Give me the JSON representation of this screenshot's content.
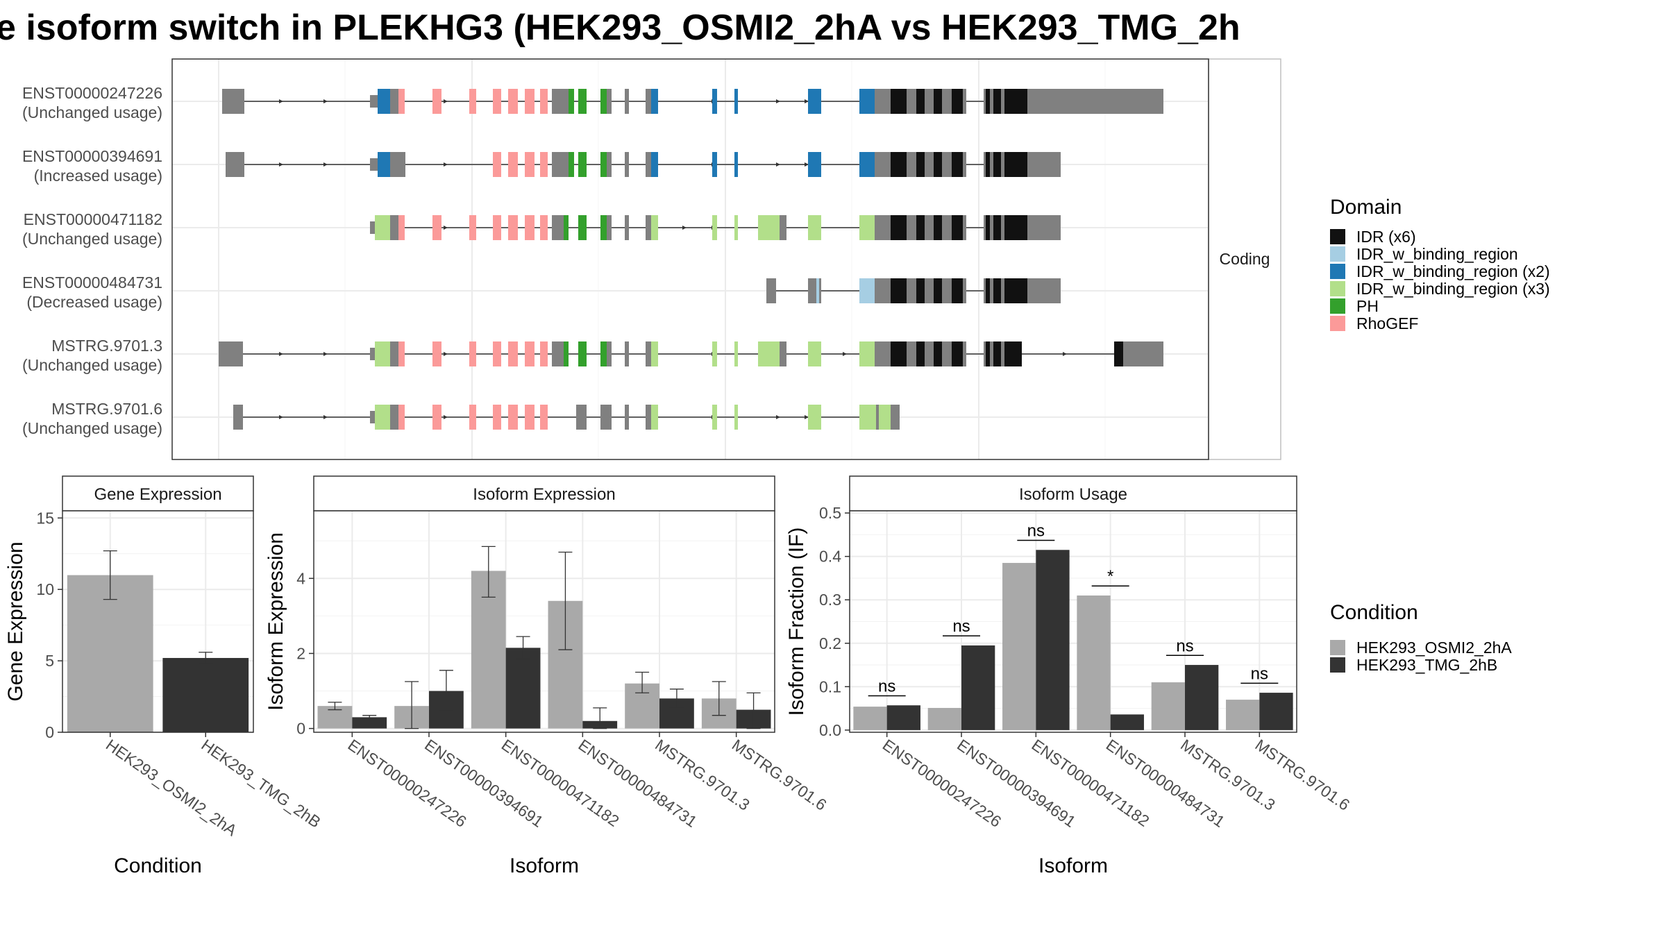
{
  "title": "e isoform switch in PLEKHG3 (HEK293_OSMI2_2hA vs HEK293_TMG_2h",
  "structure": {
    "facet_label": "Coding",
    "legend_title": "Domain",
    "legend": [
      {
        "label": "IDR (x6)",
        "color": "#111111"
      },
      {
        "label": "IDR_w_binding_region",
        "color": "#a6cee3"
      },
      {
        "label": "IDR_w_binding_region (x2)",
        "color": "#1f78b4"
      },
      {
        "label": "IDR_w_binding_region (x3)",
        "color": "#b2df8a"
      },
      {
        "label": "PH",
        "color": "#33a02c"
      },
      {
        "label": "RhoGEF",
        "color": "#fb9a99"
      }
    ],
    "colors": {
      "exon": "#808080",
      "line": "#333333",
      "panel_border": "#333333"
    },
    "isoforms": [
      {
        "id": "ENST00000247226",
        "usage": "(Unchanged usage)"
      },
      {
        "id": "ENST00000394691",
        "usage": "(Increased usage)"
      },
      {
        "id": "ENST00000471182",
        "usage": "(Unchanged usage)"
      },
      {
        "id": "ENST00000484731",
        "usage": "(Decreased usage)"
      },
      {
        "id": "MSTRG.9701.3",
        "usage": "(Unchanged usage)"
      },
      {
        "id": "MSTRG.9701.6",
        "usage": "(Unchanged usage)"
      }
    ]
  },
  "conditions_legend": {
    "title": "Condition",
    "items": [
      {
        "label": "HEK293_OSMI2_2hA",
        "color": "#a9a9a9"
      },
      {
        "label": "HEK293_TMG_2hB",
        "color": "#333333"
      }
    ]
  },
  "chart_data": [
    {
      "type": "bar",
      "title": "Gene Expression",
      "xlabel": "Condition",
      "ylabel": "Gene Expression",
      "ylim": [
        0,
        15.5
      ],
      "yticks": [
        0,
        5,
        10,
        15
      ],
      "categories": [
        "HEK293_OSMI2_2hA",
        "HEK293_TMG_2hB"
      ],
      "values": [
        11.0,
        5.2
      ],
      "error": [
        [
          9.3,
          12.7
        ],
        [
          4.8,
          5.6
        ]
      ],
      "colors": [
        "#a9a9a9",
        "#333333"
      ]
    },
    {
      "type": "bar",
      "title": "Isoform Expression",
      "xlabel": "Isoform",
      "ylabel": "Isoform Expression",
      "ylim": [
        -0.1,
        5.8
      ],
      "yticks": [
        0,
        2,
        4
      ],
      "categories": [
        "ENST00000247226",
        "ENST00000394691",
        "ENST00000471182",
        "ENST00000484731",
        "MSTRG.9701.3",
        "MSTRG.9701.6"
      ],
      "series": [
        {
          "name": "HEK293_OSMI2_2hA",
          "color": "#a9a9a9",
          "values": [
            0.6,
            0.6,
            4.2,
            3.4,
            1.2,
            0.8
          ],
          "error": [
            [
              0.5,
              0.7
            ],
            [
              0.0,
              1.25
            ],
            [
              3.5,
              4.85
            ],
            [
              2.1,
              4.7
            ],
            [
              0.95,
              1.5
            ],
            [
              0.35,
              1.25
            ]
          ]
        },
        {
          "name": "HEK293_TMG_2hB",
          "color": "#333333",
          "values": [
            0.3,
            1.0,
            2.15,
            0.2,
            0.8,
            0.5
          ],
          "error": [
            [
              0.25,
              0.35
            ],
            [
              0.5,
              1.55
            ],
            [
              1.85,
              2.45
            ],
            [
              0.0,
              0.55
            ],
            [
              0.55,
              1.05
            ],
            [
              0.0,
              0.95
            ]
          ]
        }
      ]
    },
    {
      "type": "bar",
      "title": "Isoform Usage",
      "xlabel": "Isoform",
      "ylabel": "Isoform Fraction (IF)",
      "ylim": [
        -0.005,
        0.505
      ],
      "yticks": [
        0.0,
        0.1,
        0.2,
        0.3,
        0.4,
        0.5
      ],
      "ytick_labels": [
        "0.0",
        "0.1",
        "0.2",
        "0.3",
        "0.4",
        "0.5"
      ],
      "categories": [
        "ENST00000247226",
        "ENST00000394691",
        "ENST00000471182",
        "ENST00000484731",
        "MSTRG.9701.3",
        "MSTRG.9701.6"
      ],
      "series": [
        {
          "name": "HEK293_OSMI2_2hA",
          "color": "#a9a9a9",
          "values": [
            0.054,
            0.051,
            0.385,
            0.31,
            0.11,
            0.07
          ]
        },
        {
          "name": "HEK293_TMG_2hB",
          "color": "#333333",
          "values": [
            0.057,
            0.195,
            0.415,
            0.036,
            0.15,
            0.086
          ]
        }
      ],
      "significance": [
        "ns",
        "ns",
        "ns",
        "*",
        "ns",
        "ns"
      ]
    }
  ]
}
